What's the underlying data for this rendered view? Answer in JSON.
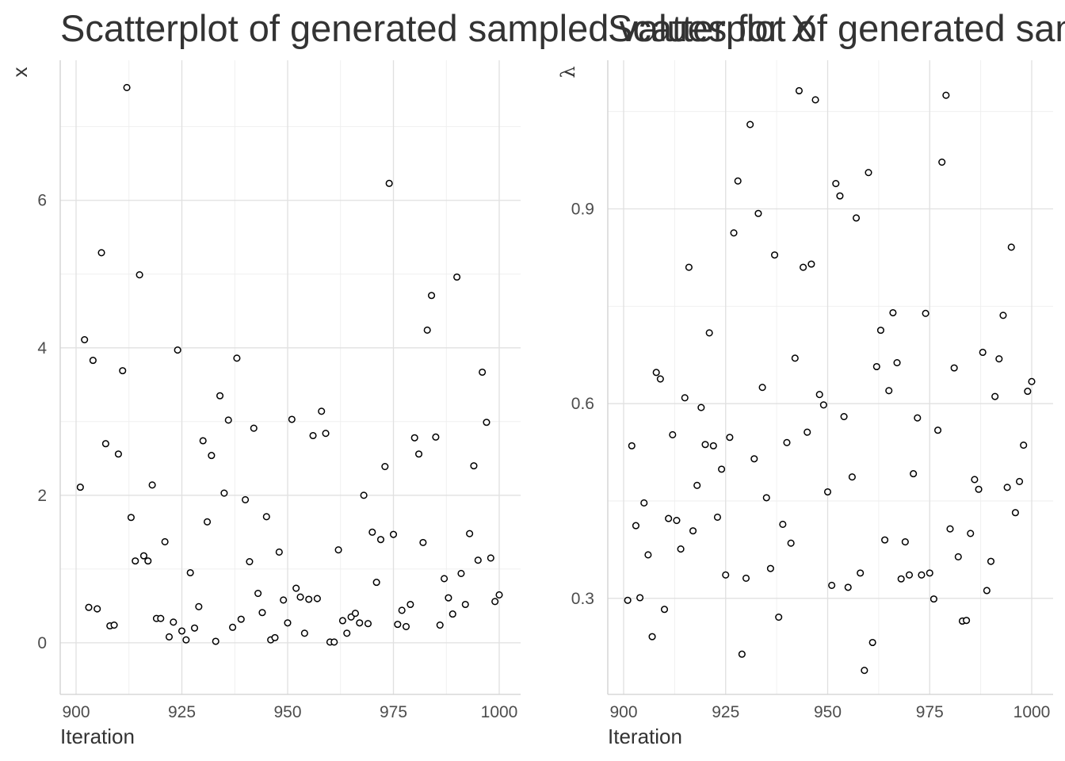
{
  "chart_data": [
    {
      "type": "scatter",
      "title": "Scatterplot of generated sampled values for X",
      "xlabel": "Iteration",
      "ylabel": "x",
      "xlim": [
        900,
        1000
      ],
      "ylim": [
        -0.7,
        7.9
      ],
      "x_ticks": [
        900,
        925,
        950,
        975,
        1000
      ],
      "y_ticks": [
        0,
        2,
        4,
        6
      ],
      "x_tick_labels": [
        "900",
        "925",
        "950",
        "975",
        "1000"
      ],
      "y_tick_labels": [
        "0",
        "2",
        "4",
        "6"
      ],
      "grid": true,
      "series": [
        {
          "x": [
            901,
            902,
            903,
            904,
            905,
            906,
            907,
            908,
            909,
            910,
            911,
            912,
            913,
            914,
            915,
            916,
            917,
            918,
            919,
            920,
            921,
            922,
            923,
            924,
            925,
            926,
            927,
            928,
            929,
            930,
            931,
            932,
            933,
            934,
            935,
            936,
            937,
            938,
            939,
            940,
            941,
            942,
            943,
            944,
            945,
            946,
            947,
            948,
            949,
            950,
            951,
            952,
            953,
            954,
            955,
            956,
            957,
            958,
            959,
            960,
            961,
            962,
            963,
            964,
            965,
            966,
            967,
            968,
            969,
            970,
            971,
            972,
            973,
            974,
            975,
            976,
            977,
            978,
            979,
            980,
            981,
            982,
            983,
            984,
            985,
            986,
            987,
            988,
            989,
            990,
            991,
            992,
            993,
            994,
            995,
            996,
            997,
            998,
            999,
            1000
          ],
          "y": [
            2.11,
            4.11,
            0.48,
            3.83,
            0.46,
            5.29,
            2.7,
            0.23,
            0.24,
            2.56,
            3.69,
            7.53,
            1.7,
            1.11,
            4.99,
            1.18,
            1.11,
            2.14,
            0.33,
            0.33,
            1.37,
            0.08,
            0.28,
            3.97,
            0.16,
            0.04,
            0.95,
            0.2,
            0.49,
            2.74,
            1.64,
            2.54,
            0.02,
            3.35,
            2.03,
            3.02,
            0.21,
            3.86,
            0.32,
            1.94,
            1.1,
            2.91,
            0.67,
            0.41,
            1.71,
            0.04,
            0.07,
            1.23,
            0.58,
            0.27,
            3.03,
            0.74,
            0.62,
            0.13,
            0.59,
            2.81,
            0.6,
            3.14,
            2.84,
            0.01,
            0.01,
            1.26,
            0.3,
            0.13,
            0.35,
            0.4,
            0.27,
            2.0,
            0.26,
            1.5,
            0.82,
            1.4,
            2.39,
            6.23,
            1.47,
            0.25,
            0.44,
            0.22,
            0.52,
            2.78,
            2.56,
            1.36,
            4.24,
            4.71,
            2.79,
            0.24,
            0.87,
            0.61,
            0.39,
            4.96,
            0.94,
            0.52,
            1.48,
            2.4,
            1.12,
            3.67,
            2.99,
            1.15,
            0.56,
            0.65
          ]
        }
      ]
    },
    {
      "type": "scatter",
      "title": "Scatterplot of generated sampled values for λ",
      "xlabel": "Iteration",
      "ylabel": "λ",
      "xlim": [
        900,
        1000
      ],
      "ylim": [
        0.152,
        1.129
      ],
      "x_ticks": [
        900,
        925,
        950,
        975,
        1000
      ],
      "y_ticks": [
        0.3,
        0.6,
        0.9
      ],
      "x_tick_labels": [
        "900",
        "925",
        "950",
        "975",
        "1000"
      ],
      "y_tick_labels": [
        "0.3",
        "0.6",
        "0.9"
      ],
      "grid": true,
      "series": [
        {
          "x": [
            901,
            902,
            903,
            904,
            905,
            906,
            907,
            908,
            909,
            910,
            911,
            912,
            913,
            914,
            915,
            916,
            917,
            918,
            919,
            920,
            921,
            922,
            923,
            924,
            925,
            926,
            927,
            928,
            929,
            930,
            931,
            932,
            933,
            934,
            935,
            936,
            937,
            938,
            939,
            940,
            941,
            942,
            943,
            944,
            945,
            946,
            947,
            948,
            949,
            950,
            951,
            952,
            953,
            954,
            955,
            956,
            957,
            958,
            959,
            960,
            961,
            962,
            963,
            964,
            965,
            966,
            967,
            968,
            969,
            970,
            971,
            972,
            973,
            974,
            975,
            976,
            977,
            978,
            979,
            980,
            981,
            982,
            983,
            984,
            985,
            986,
            987,
            988,
            989,
            990,
            991,
            992,
            993,
            994,
            995,
            996,
            997,
            998,
            999,
            1000
          ],
          "y": [
            0.297,
            0.535,
            0.412,
            0.301,
            0.447,
            0.367,
            0.241,
            0.648,
            0.638,
            0.283,
            0.423,
            0.552,
            0.42,
            0.376,
            0.609,
            0.81,
            0.404,
            0.474,
            0.594,
            0.537,
            0.709,
            0.535,
            0.425,
            0.499,
            0.336,
            0.548,
            0.863,
            0.943,
            0.214,
            0.331,
            1.03,
            0.515,
            0.893,
            0.625,
            0.455,
            0.346,
            0.829,
            0.271,
            0.414,
            0.54,
            0.385,
            0.67,
            1.082,
            0.81,
            0.556,
            0.815,
            1.068,
            0.614,
            0.598,
            0.464,
            0.32,
            0.939,
            0.92,
            0.58,
            0.317,
            0.487,
            0.886,
            0.339,
            0.189,
            0.956,
            0.232,
            0.657,
            0.713,
            0.39,
            0.62,
            0.74,
            0.663,
            0.33,
            0.387,
            0.336,
            0.492,
            0.578,
            0.336,
            0.739,
            0.339,
            0.299,
            0.559,
            0.972,
            1.075,
            0.407,
            0.655,
            0.364,
            0.265,
            0.266,
            0.4,
            0.483,
            0.468,
            0.679,
            0.312,
            0.357,
            0.611,
            0.669,
            0.736,
            0.471,
            0.841,
            0.432,
            0.48,
            0.536,
            0.619,
            0.634
          ]
        }
      ]
    }
  ]
}
